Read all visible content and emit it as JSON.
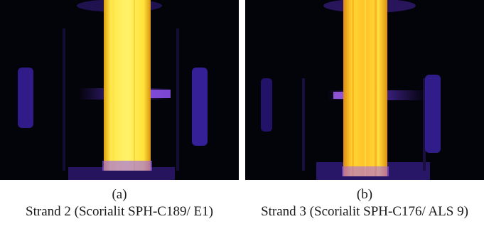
{
  "panels": [
    {
      "letter": "(a)",
      "title": "Strand 2 (Scorialit SPH-C189/ E1)",
      "image": "thermal-image-strand-2",
      "colors": {
        "hot": "#ffee4a",
        "core": "#f7c21a",
        "cold": "#7a4dff",
        "background": "#03030a"
      }
    },
    {
      "letter": "(b)",
      "title": "Strand 3 (Scorialit SPH-C176/ ALS 9)",
      "image": "thermal-image-strand-3",
      "colors": {
        "hot": "#ffe23a",
        "core": "#f59d12",
        "cold": "#7a4dff",
        "background": "#03030a"
      }
    }
  ]
}
